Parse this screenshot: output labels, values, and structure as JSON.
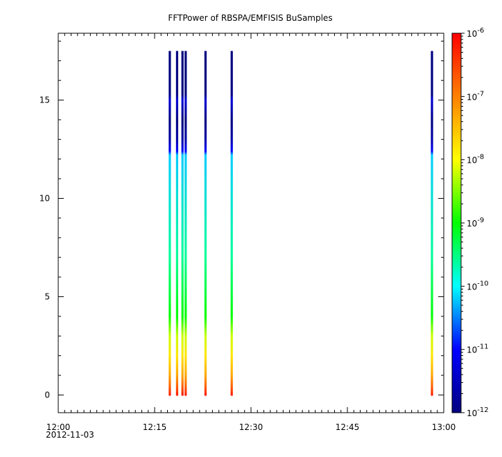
{
  "chart_data": {
    "type": "heatmap",
    "title": "FFTPower of RBSPA/EMFISIS  BuSamples",
    "xlabel": "",
    "ylabel": "",
    "x_range": [
      "12:00",
      "13:00"
    ],
    "x_date_label": "2012-11-03",
    "x_tick_labels": [
      "12:00",
      "12:15",
      "12:30",
      "12:45",
      "13:00"
    ],
    "y_range": [
      -0.9,
      18.4
    ],
    "y_ticks": [
      0,
      5,
      10,
      15
    ],
    "colorbar": {
      "scale": "log",
      "range": [
        1e-12,
        1e-06
      ],
      "colormap": [
        "#000080",
        "#0000ff",
        "#00ffff",
        "#00ff00",
        "#ffff00",
        "#ff8000",
        "#ff0000"
      ],
      "tick_labels": [
        {
          "base": "10",
          "exp": "-6"
        },
        {
          "base": "10",
          "exp": "-7"
        },
        {
          "base": "10",
          "exp": "-8"
        },
        {
          "base": "10",
          "exp": "-9"
        },
        {
          "base": "10",
          "exp": "-10"
        },
        {
          "base": "10",
          "exp": "-11"
        },
        {
          "base": "10",
          "exp": "-12"
        }
      ]
    },
    "bursts": [
      {
        "time": "12:17:22",
        "y_max": 17.5
      },
      {
        "time": "12:18:30",
        "y_max": 17.5
      },
      {
        "time": "12:19:20",
        "y_max": 17.5
      },
      {
        "time": "12:19:50",
        "y_max": 17.5
      },
      {
        "time": "12:22:55",
        "y_max": 17.5
      },
      {
        "time": "12:27:00",
        "y_max": 17.5
      },
      {
        "time": "12:58:10",
        "y_max": 17.5
      }
    ],
    "spectrum_profile": [
      {
        "y": 0.0,
        "log_power": -6.2
      },
      {
        "y": 0.4,
        "log_power": -6.7
      },
      {
        "y": 1.0,
        "log_power": -7.3
      },
      {
        "y": 2.0,
        "log_power": -7.8
      },
      {
        "y": 3.0,
        "log_power": -8.2
      },
      {
        "y": 4.0,
        "log_power": -9.0
      },
      {
        "y": 7.0,
        "log_power": -9.6
      },
      {
        "y": 12.2,
        "log_power": -10.2
      },
      {
        "y": 12.4,
        "log_power": -11.0
      },
      {
        "y": 13.0,
        "log_power": -11.7
      },
      {
        "y": 14.0,
        "log_power": -12.0
      },
      {
        "y": 15.0,
        "log_power": -11.3
      },
      {
        "y": 15.3,
        "log_power": -12.0
      },
      {
        "y": 17.5,
        "log_power": -12.0
      }
    ]
  }
}
